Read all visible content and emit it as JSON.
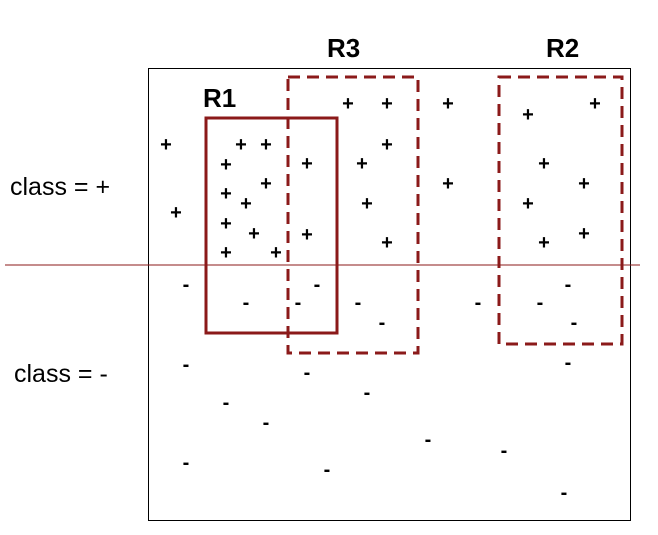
{
  "class_labels": {
    "positive": "class = +",
    "negative": "class = -"
  },
  "regions": {
    "r1": "R1",
    "r2": "R2",
    "r3": "R3"
  },
  "point_symbols": {
    "positive": "+",
    "negative": "-"
  },
  "colors": {
    "region_stroke": "#8b1a1a",
    "divider": "#8b1a1a",
    "frame": "#000000",
    "text": "#000000"
  }
}
